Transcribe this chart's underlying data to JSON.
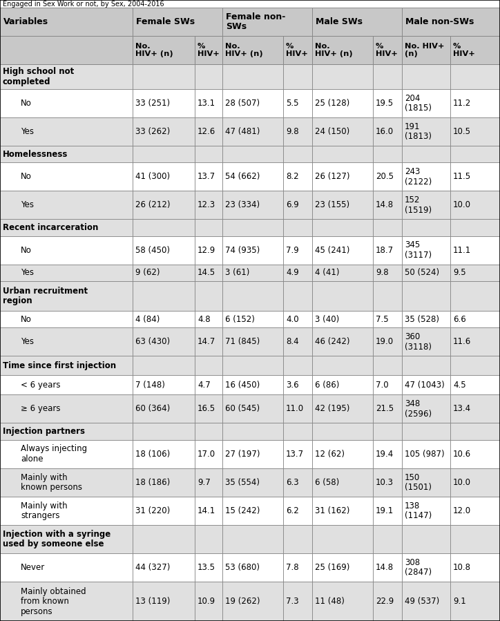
{
  "col_groups": [
    "Female SWs",
    "Female non-\nSWs",
    "Male SWs",
    "Male non-SWs"
  ],
  "col_headers": [
    "No.\nHIV+ (n)",
    "%\nHIV+",
    "No.\nHIV+ (n)",
    "%\nHIV+",
    "No.\nHIV+ (n)",
    "%\nHIV+",
    "No. HIV+\n(n)",
    "%\nHIV+"
  ],
  "rows": [
    {
      "label": "High school not\ncompleted",
      "indent": false,
      "category": true,
      "data": [
        "",
        "",
        "",
        "",
        "",
        "",
        "",
        ""
      ]
    },
    {
      "label": "No",
      "indent": true,
      "category": false,
      "data": [
        "33 (251)",
        "13.1",
        "28 (507)",
        "5.5",
        "25 (128)",
        "19.5",
        "204\n(1815)",
        "11.2"
      ]
    },
    {
      "label": "Yes",
      "indent": true,
      "category": false,
      "data": [
        "33 (262)",
        "12.6",
        "47 (481)",
        "9.8",
        "24 (150)",
        "16.0",
        "191\n(1813)",
        "10.5"
      ]
    },
    {
      "label": "Homelessness",
      "indent": false,
      "category": true,
      "data": [
        "",
        "",
        "",
        "",
        "",
        "",
        "",
        ""
      ]
    },
    {
      "label": "No",
      "indent": true,
      "category": false,
      "data": [
        "41 (300)",
        "13.7",
        "54 (662)",
        "8.2",
        "26 (127)",
        "20.5",
        "243\n(2122)",
        "11.5"
      ]
    },
    {
      "label": "Yes",
      "indent": true,
      "category": false,
      "data": [
        "26 (212)",
        "12.3",
        "23 (334)",
        "6.9",
        "23 (155)",
        "14.8",
        "152\n(1519)",
        "10.0"
      ]
    },
    {
      "label": "Recent incarceration",
      "indent": false,
      "category": true,
      "data": [
        "",
        "",
        "",
        "",
        "",
        "",
        "",
        ""
      ]
    },
    {
      "label": "No",
      "indent": true,
      "category": false,
      "data": [
        "58 (450)",
        "12.9",
        "74 (935)",
        "7.9",
        "45 (241)",
        "18.7",
        "345\n(3117)",
        "11.1"
      ]
    },
    {
      "label": "Yes",
      "indent": true,
      "category": false,
      "data": [
        "9 (62)",
        "14.5",
        "3 (61)",
        "4.9",
        "4 (41)",
        "9.8",
        "50 (524)",
        "9.5"
      ]
    },
    {
      "label": "Urban recruitment\nregion",
      "indent": false,
      "category": true,
      "data": [
        "",
        "",
        "",
        "",
        "",
        "",
        "",
        ""
      ]
    },
    {
      "label": "No",
      "indent": true,
      "category": false,
      "data": [
        "4 (84)",
        "4.8",
        "6 (152)",
        "4.0",
        "3 (40)",
        "7.5",
        "35 (528)",
        "6.6"
      ]
    },
    {
      "label": "Yes",
      "indent": true,
      "category": false,
      "data": [
        "63 (430)",
        "14.7",
        "71 (845)",
        "8.4",
        "46 (242)",
        "19.0",
        "360\n(3118)",
        "11.6"
      ]
    },
    {
      "label": "Time since first injection",
      "indent": false,
      "category": true,
      "data": [
        "",
        "",
        "",
        "",
        "",
        "",
        "",
        ""
      ]
    },
    {
      "label": "< 6 years",
      "indent": true,
      "category": false,
      "data": [
        "7 (148)",
        "4.7",
        "16 (450)",
        "3.6",
        "6 (86)",
        "7.0",
        "47 (1043)",
        "4.5"
      ]
    },
    {
      "label": "≥ 6 years",
      "indent": true,
      "category": false,
      "data": [
        "60 (364)",
        "16.5",
        "60 (545)",
        "11.0",
        "42 (195)",
        "21.5",
        "348\n(2596)",
        "13.4"
      ]
    },
    {
      "label": "Injection partners",
      "indent": false,
      "category": true,
      "data": [
        "",
        "",
        "",
        "",
        "",
        "",
        "",
        ""
      ]
    },
    {
      "label": "Always injecting\nalone",
      "indent": true,
      "category": false,
      "data": [
        "18 (106)",
        "17.0",
        "27 (197)",
        "13.7",
        "12 (62)",
        "19.4",
        "105 (987)",
        "10.6"
      ]
    },
    {
      "label": "Mainly with\nknown persons",
      "indent": true,
      "category": false,
      "data": [
        "18 (186)",
        "9.7",
        "35 (554)",
        "6.3",
        "6 (58)",
        "10.3",
        "150\n(1501)",
        "10.0"
      ]
    },
    {
      "label": "Mainly with\nstrangers",
      "indent": true,
      "category": false,
      "data": [
        "31 (220)",
        "14.1",
        "15 (242)",
        "6.2",
        "31 (162)",
        "19.1",
        "138\n(1147)",
        "12.0"
      ]
    },
    {
      "label": "Injection with a syringe\nused by someone else",
      "indent": false,
      "category": true,
      "data": [
        "",
        "",
        "",
        "",
        "",
        "",
        "",
        ""
      ]
    },
    {
      "label": "Never",
      "indent": true,
      "category": false,
      "data": [
        "44 (327)",
        "13.5",
        "53 (680)",
        "7.8",
        "25 (169)",
        "14.8",
        "308\n(2847)",
        "10.8"
      ]
    },
    {
      "label": "Mainly obtained\nfrom known\npersons",
      "indent": true,
      "category": false,
      "data": [
        "13 (119)",
        "10.9",
        "19 (262)",
        "7.3",
        "11 (48)",
        "22.9",
        "49 (537)",
        "9.1"
      ]
    }
  ],
  "bg_white": "#ffffff",
  "bg_gray": "#e0e0e0",
  "header_bg": "#c8c8c8",
  "border_color": "#888888",
  "title_line": "Engaged in Sex Work or not, by Sex, 2004-2016"
}
